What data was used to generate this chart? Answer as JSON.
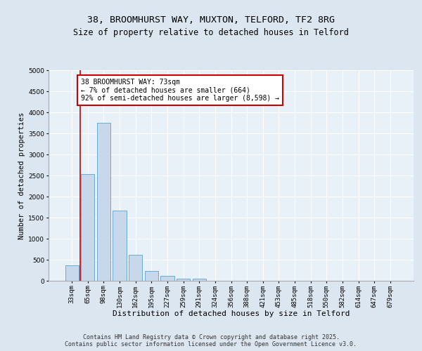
{
  "title_line1": "38, BROOMHURST WAY, MUXTON, TELFORD, TF2 8RG",
  "title_line2": "Size of property relative to detached houses in Telford",
  "xlabel": "Distribution of detached houses by size in Telford",
  "ylabel": "Number of detached properties",
  "categories": [
    "33sqm",
    "65sqm",
    "98sqm",
    "130sqm",
    "162sqm",
    "195sqm",
    "227sqm",
    "259sqm",
    "291sqm",
    "324sqm",
    "356sqm",
    "388sqm",
    "421sqm",
    "453sqm",
    "485sqm",
    "518sqm",
    "550sqm",
    "582sqm",
    "614sqm",
    "647sqm",
    "679sqm"
  ],
  "values": [
    370,
    2530,
    3750,
    1660,
    620,
    230,
    110,
    50,
    50,
    0,
    0,
    0,
    0,
    0,
    0,
    0,
    0,
    0,
    0,
    0,
    0
  ],
  "bar_color": "#c8d8eb",
  "bar_edge_color": "#6aaad4",
  "bar_edge_width": 0.7,
  "vline_color": "#cc0000",
  "vline_x": 0.5,
  "annotation_text": "38 BROOMHURST WAY: 73sqm\n← 7% of detached houses are smaller (664)\n92% of semi-detached houses are larger (8,598) →",
  "annotation_box_color": "#ffffff",
  "annotation_box_edge_color": "#cc0000",
  "ylim": [
    0,
    5000
  ],
  "yticks": [
    0,
    500,
    1000,
    1500,
    2000,
    2500,
    3000,
    3500,
    4000,
    4500,
    5000
  ],
  "bg_color": "#dce6f0",
  "plot_bg_color": "#e8f0f8",
  "footer_text": "Contains HM Land Registry data © Crown copyright and database right 2025.\nContains public sector information licensed under the Open Government Licence v3.0.",
  "grid_color": "#ffffff",
  "title_fontsize": 9.5,
  "subtitle_fontsize": 8.5,
  "ylabel_fontsize": 7.5,
  "xlabel_fontsize": 8,
  "tick_fontsize": 6.5,
  "annotation_fontsize": 7,
  "footer_fontsize": 6
}
